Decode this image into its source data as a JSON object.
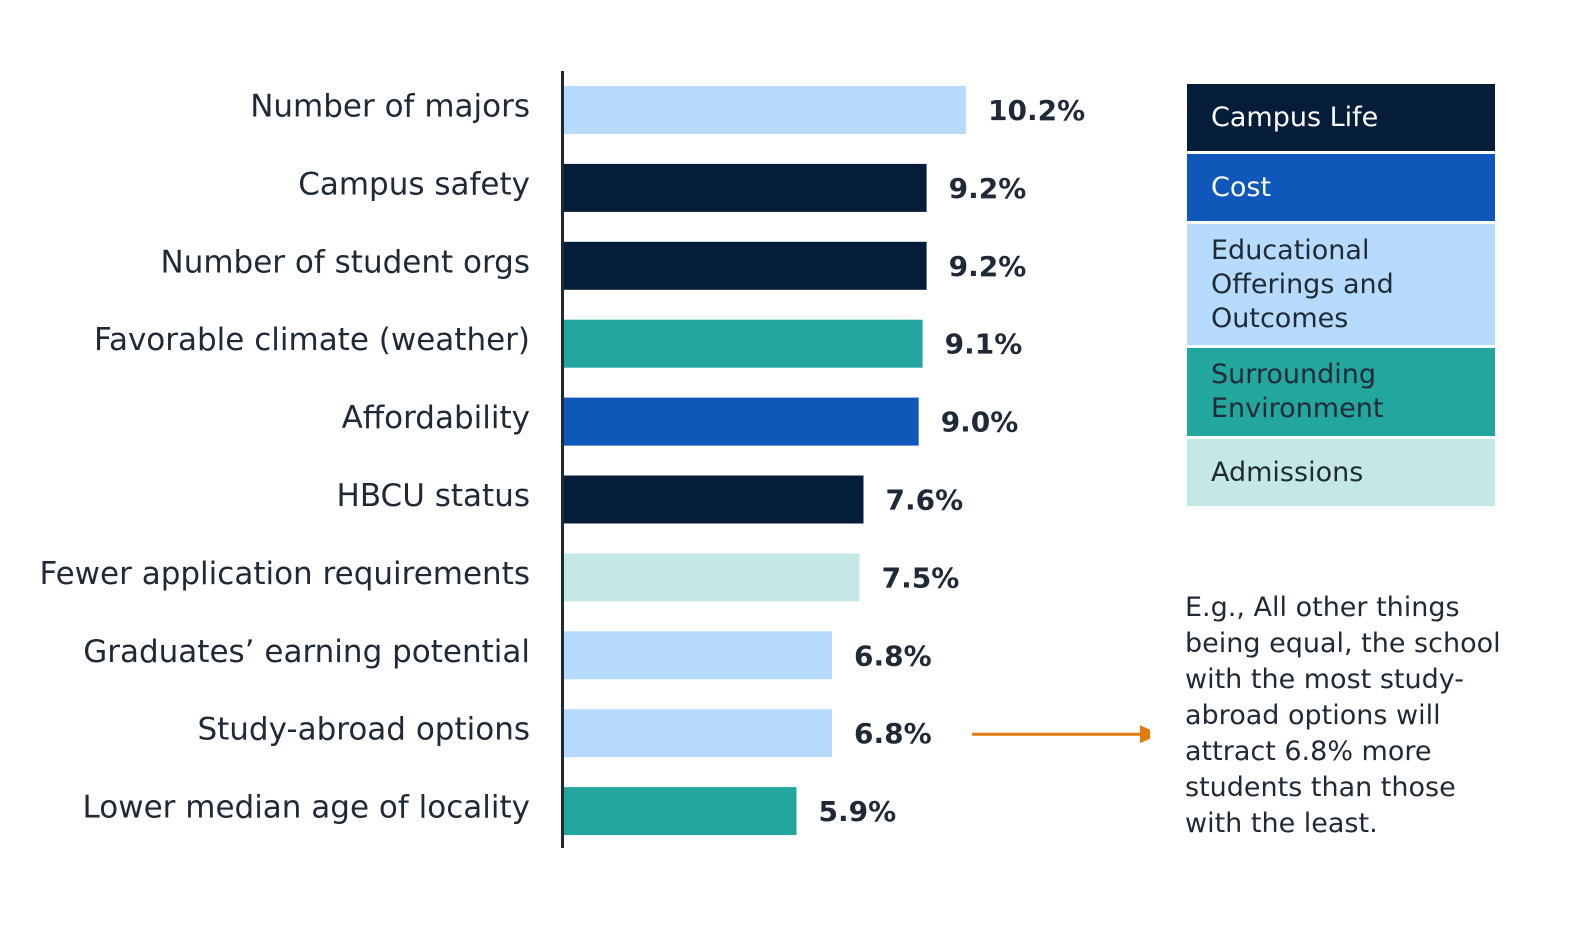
{
  "chart_data": {
    "type": "bar",
    "orientation": "horizontal",
    "categories": [
      "Number of majors",
      "Campus safety",
      "Number of student orgs",
      "Favorable climate (weather)",
      "Affordability",
      "HBCU status",
      "Fewer application requirements",
      "Graduates’ earning potential",
      "Study-abroad options",
      "Lower median age of locality"
    ],
    "values": [
      10.2,
      9.2,
      9.2,
      9.1,
      9.0,
      7.6,
      7.5,
      6.8,
      6.8,
      5.9
    ],
    "value_labels": [
      "10.2%",
      "9.2%",
      "9.2%",
      "9.1%",
      "9.0%",
      "7.6%",
      "7.5%",
      "6.8%",
      "6.8%",
      "5.9%"
    ],
    "groups": [
      "Educational Offerings and Outcomes",
      "Campus Life",
      "Campus Life",
      "Surrounding Environment",
      "Cost",
      "Campus Life",
      "Admissions",
      "Educational Offerings and Outcomes",
      "Educational Offerings and Outcomes",
      "Surrounding Environment"
    ],
    "xlim": [
      0,
      10.2
    ],
    "grid": false,
    "legend_position": "right",
    "legend": [
      {
        "label": "Campus Life",
        "color": "#051d38",
        "text_color": "#ffffff"
      },
      {
        "label": "Cost",
        "color": "#0f57b8",
        "text_color": "#ffffff"
      },
      {
        "label": "Educational Offerings and Outcomes",
        "color": "#b6dbfd",
        "text_color": "#1f2a36"
      },
      {
        "label": "Surrounding Environment",
        "color": "#23a69e",
        "text_color": "#1f2a36"
      },
      {
        "label": "Admissions",
        "color": "#c3e8e5",
        "text_color": "#1f2a36"
      }
    ]
  },
  "annotation": {
    "text": "E.g., All other things being equal, the school with the most study-abroad options will attract 6.8% more students than those with the least.",
    "arrow_color": "#e07b0d",
    "points_to_category": "Study-abroad options"
  }
}
